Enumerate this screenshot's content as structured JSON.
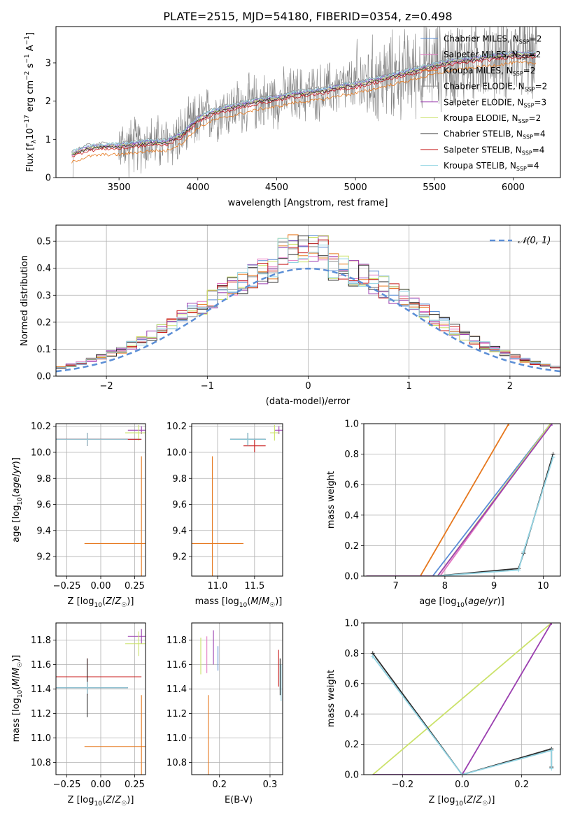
{
  "colors": {
    "chabrier_miles": "#5b8ed6",
    "salpeter_miles": "#e377c2",
    "kroupa_miles": "#e6781e",
    "chabrier_elodie": "#8c8c8c",
    "salpeter_elodie": "#9b3fb0",
    "kroupa_elodie": "#cbe26a",
    "chabrier_stelib": "#2b2b2b",
    "salpeter_stelib": "#c81e1e",
    "kroupa_stelib": "#93d4e3",
    "data": "#808080",
    "normal": "#5b8ed6",
    "grid": "#b0b0b0"
  },
  "chart_data": [
    {
      "id": "spectrum",
      "type": "line",
      "title": "PLATE=2515, MJD=54180, FIBERID=0354, z=0.498",
      "xlabel": "wavelength [Angstrom, rest frame]",
      "ylabel": "Flux [f_λ 10^-17 erg cm^-2 s^-1 A^-1]",
      "xlim": [
        3100,
        6300
      ],
      "ylim": [
        0,
        3.95
      ],
      "xticks": [
        "3500",
        "4000",
        "4500",
        "5000",
        "5500",
        "6000"
      ],
      "yticks": [
        "0",
        "1",
        "2",
        "3"
      ],
      "legend": {
        "position": "top-right",
        "entries": [
          "Chabrier MILES, N_SSP=2",
          "Salpeter MILES, N_SSP=2",
          "Kroupa MILES, N_SSP=2",
          "Chabrier ELODIE, N_SSP=2",
          "Salpeter ELODIE, N_SSP=3",
          "Kroupa ELODIE, N_SSP=2",
          "Chabrier STELIB, N_SSP=4",
          "Salpeter STELIB, N_SSP=4",
          "Kroupa STELIB, N_SSP=4"
        ]
      },
      "model_continuum": {
        "x": [
          3200,
          3300,
          3400,
          3500,
          3600,
          3700,
          3800,
          3900,
          4000,
          4100,
          4200,
          4300,
          4400,
          4500,
          4600,
          4700,
          4800,
          4900,
          5000,
          5100,
          5200,
          5300,
          5400,
          5500,
          5600,
          5700,
          5800,
          5900,
          6000,
          6100
        ],
        "y": [
          0.6,
          0.75,
          0.8,
          0.8,
          0.85,
          0.9,
          0.9,
          1.1,
          1.5,
          1.7,
          1.8,
          1.9,
          2.0,
          2.05,
          2.15,
          2.2,
          2.25,
          2.35,
          2.4,
          2.5,
          2.6,
          2.7,
          2.8,
          2.9,
          3.0,
          3.05,
          3.1,
          3.15,
          3.2,
          3.2
        ]
      },
      "model_offsets": [
        0.05,
        0.0,
        -0.2,
        0.1,
        0.05,
        0.02,
        0.0,
        -0.05,
        0.08
      ],
      "data_range": [
        3200,
        6150
      ]
    },
    {
      "id": "residuals",
      "type": "line",
      "xlabel": "(data-model)/error",
      "ylabel": "Normed distribution",
      "xlim": [
        -2.5,
        2.5
      ],
      "ylim": [
        0,
        0.56
      ],
      "xticks": [
        -2,
        -1,
        0,
        1,
        2
      ],
      "xtick_labels": [
        "−2",
        "−1",
        "0",
        "1",
        "2"
      ],
      "yticks": [
        0.0,
        0.1,
        0.2,
        0.3,
        0.4,
        0.5
      ],
      "ytick_labels": [
        "0.0",
        "0.1",
        "0.2",
        "0.3",
        "0.4",
        "0.5"
      ],
      "legend": {
        "position": "top-right",
        "entries": [
          "N(0,1)"
        ]
      },
      "normal_label": "𝒩(0, 1)",
      "bin_width": 0.1
    },
    {
      "id": "age_vs_Z",
      "type": "scatter",
      "xlabel": "Z [log10(Z/Z☉)]",
      "ylabel": "age [log10(age/yr)]",
      "xlim": [
        -0.33,
        0.33
      ],
      "ylim": [
        9.05,
        10.22
      ],
      "xticks": [
        -0.25,
        0.0,
        0.25
      ],
      "xtick_labels": [
        "−0.25",
        "0.00",
        "0.25"
      ],
      "yticks": [
        9.2,
        9.4,
        9.6,
        9.8,
        10.0,
        10.2
      ],
      "ytick_labels": [
        "9.2",
        "9.4",
        "9.6",
        "9.8",
        "10.0",
        "10.2"
      ],
      "points": [
        {
          "model": "kroupa_miles",
          "x": 0.3,
          "y": 9.3,
          "xerr": 0.42,
          "yerr": 0.67
        },
        {
          "model": "chabrier_miles",
          "x": -0.1,
          "y": 10.1,
          "xerr": 0.4,
          "yerr": 0.05
        },
        {
          "model": "salpeter_elodie",
          "x": 0.3,
          "y": 10.17,
          "xerr": 0.1,
          "yerr": 0.03
        },
        {
          "model": "kroupa_elodie",
          "x": 0.28,
          "y": 10.15,
          "xerr": 0.1,
          "yerr": 0.06
        },
        {
          "model": "chabrier_stelib",
          "x": -0.1,
          "y": 10.1,
          "xerr": 0.3,
          "yerr": 0.05
        },
        {
          "model": "salpeter_stelib",
          "x": -0.1,
          "y": 10.1,
          "xerr": 0.4,
          "yerr": 0.05
        },
        {
          "model": "kroupa_stelib",
          "x": -0.1,
          "y": 10.1,
          "xerr": 0.3,
          "yerr": 0.05
        }
      ]
    },
    {
      "id": "age_vs_mass",
      "type": "scatter",
      "xlabel": "mass [log10(M/M☉)]",
      "xlim": [
        10.65,
        11.88
      ],
      "ylim": [
        9.05,
        10.22
      ],
      "xticks": [
        11.0,
        11.5
      ],
      "xtick_labels": [
        "11.0",
        "11.5"
      ],
      "yticks": [
        9.2,
        9.4,
        9.6,
        9.8,
        10.0,
        10.2
      ],
      "ytick_labels": [
        "9.2",
        "9.4",
        "9.6",
        "9.8",
        "10.0",
        "10.2"
      ],
      "points": [
        {
          "model": "kroupa_miles",
          "x": 10.93,
          "y": 9.3,
          "xerr": 0.42,
          "yerr": 0.67
        },
        {
          "model": "chabrier_miles",
          "x": 11.41,
          "y": 10.1,
          "xerr": 0.24,
          "yerr": 0.05
        },
        {
          "model": "salpeter_elodie",
          "x": 11.83,
          "y": 10.17,
          "xerr": 0.06,
          "yerr": 0.03
        },
        {
          "model": "kroupa_elodie",
          "x": 11.77,
          "y": 10.15,
          "xerr": 0.06,
          "yerr": 0.06
        },
        {
          "model": "chabrier_stelib",
          "x": 11.41,
          "y": 10.1,
          "xerr": 0.24,
          "yerr": 0.05
        },
        {
          "model": "salpeter_stelib",
          "x": 11.5,
          "y": 10.05,
          "xerr": 0.15,
          "yerr": 0.05
        },
        {
          "model": "kroupa_stelib",
          "x": 11.41,
          "y": 10.1,
          "xerr": 0.24,
          "yerr": 0.05
        }
      ]
    },
    {
      "id": "weight_vs_age",
      "type": "line",
      "xlabel": "age [log10(age/yr)]",
      "ylabel": "mass weight",
      "xlim": [
        6.35,
        10.35
      ],
      "ylim": [
        0.0,
        1.0
      ],
      "xticks": [
        7,
        8,
        9,
        10
      ],
      "xtick_labels": [
        "7",
        "8",
        "9",
        "10"
      ],
      "yticks": [
        0.0,
        0.2,
        0.4,
        0.6,
        0.8,
        1.0
      ],
      "ytick_labels": [
        "0.0",
        "0.2",
        "0.4",
        "0.6",
        "0.8",
        "1.0"
      ],
      "series": [
        {
          "model": "kroupa_miles",
          "x": [
            6.4,
            7.5,
            9.3
          ],
          "y": [
            0.0,
            0.0,
            1.0
          ]
        },
        {
          "model": "chabrier_miles",
          "x": [
            6.4,
            7.75,
            10.15
          ],
          "y": [
            0.0,
            0.0,
            1.0
          ]
        },
        {
          "model": "salpeter_miles",
          "x": [
            6.4,
            7.9,
            10.15
          ],
          "y": [
            0.0,
            0.0,
            1.0
          ]
        },
        {
          "model": "kroupa_elodie",
          "x": [
            6.4,
            7.85,
            10.15
          ],
          "y": [
            0.0,
            0.0,
            1.0
          ]
        },
        {
          "model": "salpeter_elodie",
          "x": [
            6.4,
            7.85,
            10.18
          ],
          "y": [
            0.0,
            0.0,
            1.0
          ]
        },
        {
          "model": "chabrier_stelib",
          "x": [
            7.8,
            9.5,
            9.6,
            10.2
          ],
          "y": [
            0.0,
            0.05,
            0.15,
            0.8
          ]
        },
        {
          "model": "kroupa_stelib",
          "x": [
            7.8,
            9.5,
            9.6,
            10.2
          ],
          "y": [
            0.0,
            0.04,
            0.16,
            0.78
          ]
        }
      ]
    },
    {
      "id": "mass_vs_Z",
      "type": "scatter",
      "xlabel": "Z [log10(Z/Z☉)]",
      "ylabel": "mass [log10(M/M☉)]",
      "xlim": [
        -0.33,
        0.33
      ],
      "ylim": [
        10.7,
        11.94
      ],
      "xticks": [
        -0.25,
        0.0,
        0.25
      ],
      "xtick_labels": [
        "−0.25",
        "0.00",
        "0.25"
      ],
      "yticks": [
        10.8,
        11.0,
        11.2,
        11.4,
        11.6,
        11.8
      ],
      "ytick_labels": [
        "10.8",
        "11.0",
        "11.2",
        "11.4",
        "11.6",
        "11.8"
      ],
      "points": [
        {
          "model": "kroupa_miles",
          "x": 0.3,
          "y": 10.93,
          "xerr": 0.42,
          "yerr": 0.42
        },
        {
          "model": "chabrier_miles",
          "x": -0.1,
          "y": 11.41,
          "xerr": 0.3,
          "yerr": 0.05
        },
        {
          "model": "salpeter_elodie",
          "x": 0.3,
          "y": 11.83,
          "xerr": 0.1,
          "yerr": 0.06
        },
        {
          "model": "kroupa_elodie",
          "x": 0.28,
          "y": 11.77,
          "xerr": 0.1,
          "yerr": 0.1
        },
        {
          "model": "salpeter_stelib",
          "x": -0.1,
          "y": 11.5,
          "xerr": 0.4,
          "yerr": 0.15
        },
        {
          "model": "chabrier_stelib",
          "x": -0.1,
          "y": 11.41,
          "xerr": 0.3,
          "yerr": 0.24
        },
        {
          "model": "kroupa_stelib",
          "x": -0.1,
          "y": 11.41,
          "xerr": 0.3,
          "yerr": 0.05
        }
      ]
    },
    {
      "id": "mass_vs_ebv",
      "type": "scatter",
      "xlabel": "E(B-V)",
      "xlim": [
        0.145,
        0.325
      ],
      "ylim": [
        10.7,
        11.94
      ],
      "xticks": [
        0.2,
        0.3
      ],
      "xtick_labels": [
        "0.2",
        "0.3"
      ],
      "yticks": [
        10.8,
        11.0,
        11.2,
        11.4,
        11.6,
        11.8
      ],
      "ytick_labels": [
        "10.8",
        "11.0",
        "11.2",
        "11.4",
        "11.6",
        "11.8"
      ],
      "points": [
        {
          "model": "kroupa_miles",
          "x": 0.178,
          "y": 10.93,
          "xerr": 0,
          "yerr": 0.42
        },
        {
          "model": "kroupa_elodie",
          "x": 0.163,
          "y": 11.67,
          "xerr": 0,
          "yerr": 0.15
        },
        {
          "model": "salpeter_miles",
          "x": 0.175,
          "y": 11.68,
          "xerr": 0,
          "yerr": 0.15
        },
        {
          "model": "salpeter_elodie",
          "x": 0.188,
          "y": 11.74,
          "xerr": 0,
          "yerr": 0.14
        },
        {
          "model": "chabrier_miles",
          "x": 0.197,
          "y": 11.65,
          "xerr": 0,
          "yerr": 0.1
        },
        {
          "model": "salpeter_stelib",
          "x": 0.317,
          "y": 11.57,
          "xerr": 0,
          "yerr": 0.15
        },
        {
          "model": "chabrier_stelib",
          "x": 0.32,
          "y": 11.5,
          "xerr": 0,
          "yerr": 0.15
        },
        {
          "model": "kroupa_stelib",
          "x": 0.322,
          "y": 11.45,
          "xerr": 0,
          "yerr": 0.15
        }
      ]
    },
    {
      "id": "weight_vs_Z",
      "type": "line",
      "xlabel": "Z [log10(Z/Z☉)]",
      "ylabel": "mass weight",
      "xlim": [
        -0.33,
        0.33
      ],
      "ylim": [
        0.0,
        1.0
      ],
      "xticks": [
        -0.2,
        0.0,
        0.2
      ],
      "xtick_labels": [
        "−0.2",
        "0.0",
        "0.2"
      ],
      "yticks": [
        0.0,
        0.2,
        0.4,
        0.6,
        0.8,
        1.0
      ],
      "ytick_labels": [
        "0.0",
        "0.2",
        "0.4",
        "0.6",
        "0.8",
        "1.0"
      ],
      "series": [
        {
          "model": "kroupa_elodie",
          "x": [
            -0.3,
            0.3
          ],
          "y": [
            0.0,
            1.0
          ]
        },
        {
          "model": "salpeter_elodie",
          "x": [
            -0.3,
            0.0,
            0.3
          ],
          "y": [
            0.0,
            0.0,
            1.0
          ]
        },
        {
          "model": "chabrier_stelib",
          "x": [
            -0.3,
            0.0,
            0.3,
            0.3
          ],
          "y": [
            0.8,
            0.0,
            0.17,
            0.05
          ]
        },
        {
          "model": "kroupa_stelib",
          "x": [
            -0.3,
            0.0,
            0.3,
            0.3
          ],
          "y": [
            0.78,
            0.0,
            0.16,
            0.04
          ]
        }
      ]
    }
  ]
}
